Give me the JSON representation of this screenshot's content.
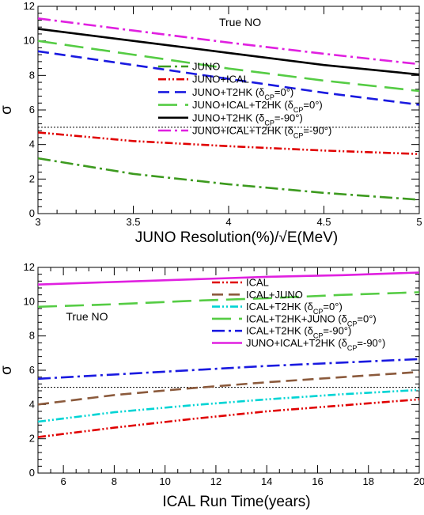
{
  "chart_data": [
    {
      "type": "line",
      "xlabel": "JUNO Resolution(%)/√E(MeV)",
      "ylabel": "σ",
      "xlim": [
        3,
        5
      ],
      "ylim": [
        0,
        12
      ],
      "xticks": [
        3,
        3.5,
        4,
        4.5,
        5
      ],
      "xtick_labels": [
        "3",
        "3.5",
        "4",
        "4.5",
        "5"
      ],
      "yticks": [
        0,
        2,
        4,
        6,
        8,
        10,
        12
      ],
      "ytick_labels": [
        "0",
        "2",
        "4",
        "6",
        "8",
        "10",
        "12"
      ],
      "annotations": [
        {
          "text": "True NO",
          "at": [
            3.95,
            10.85
          ]
        }
      ],
      "reference_line": {
        "y": 5,
        "style": "dotted"
      },
      "legend_placement": "center-right",
      "series": [
        {
          "name": "JUNO",
          "color": "#3c9a1e",
          "dash": "dashdot",
          "x": [
            3,
            3.5,
            4,
            4.5,
            5
          ],
          "y": [
            3.2,
            2.3,
            1.7,
            1.2,
            0.8
          ]
        },
        {
          "name": "JUNO+ICAL",
          "color": "#e00000",
          "dash": "dashdotdot",
          "x": [
            3,
            3.5,
            4,
            4.5,
            5
          ],
          "y": [
            4.7,
            4.2,
            3.9,
            3.65,
            3.45
          ]
        },
        {
          "name": "JUNO+T2HK (δ_CP=0°)",
          "color": "#1a1ae0",
          "dash": "dashed",
          "x": [
            3,
            3.5,
            4,
            4.5,
            5
          ],
          "y": [
            9.4,
            8.6,
            7.8,
            7.0,
            6.3
          ]
        },
        {
          "name": "JUNO+ICAL+T2HK (δ_CP=0°)",
          "color": "#55cc44",
          "dash": "longdash",
          "x": [
            3,
            3.5,
            4,
            4.5,
            5
          ],
          "y": [
            10.0,
            9.2,
            8.4,
            7.7,
            7.1
          ]
        },
        {
          "name": "JUNO+T2HK (δ_CP=-90°)",
          "color": "#000000",
          "dash": "solid",
          "x": [
            3,
            3.5,
            4,
            4.5,
            5
          ],
          "y": [
            10.7,
            10.0,
            9.3,
            8.6,
            8.05
          ]
        },
        {
          "name": "JUNO+ICAL+T2HK (δ_CP=-90°)",
          "color": "#e020e0",
          "dash": "dashdot",
          "x": [
            3,
            3.5,
            4,
            4.5,
            5
          ],
          "y": [
            11.3,
            10.6,
            9.9,
            9.25,
            8.65
          ]
        }
      ]
    },
    {
      "type": "line",
      "xlabel": "ICAL Run Time(years)",
      "ylabel": "σ",
      "xlim": [
        5,
        20
      ],
      "ylim": [
        0,
        12
      ],
      "xticks": [
        6,
        8,
        10,
        12,
        14,
        16,
        18,
        20
      ],
      "xtick_labels": [
        "6",
        "8",
        "10",
        "12",
        "14",
        "16",
        "18",
        "20"
      ],
      "yticks": [
        0,
        2,
        4,
        6,
        8,
        10,
        12
      ],
      "ytick_labels": [
        "0",
        "2",
        "4",
        "6",
        "8",
        "10",
        "12"
      ],
      "annotations": [
        {
          "text": "True NO",
          "at": [
            6.1,
            8.9
          ]
        }
      ],
      "reference_line": {
        "y": 5,
        "style": "dotted"
      },
      "legend_placement": "top-right",
      "series": [
        {
          "name": "ICAL",
          "color": "#e00000",
          "dash": "dashdotdot",
          "x": [
            5,
            8,
            11,
            14,
            17,
            20
          ],
          "y": [
            2.1,
            2.65,
            3.15,
            3.6,
            3.95,
            4.3
          ]
        },
        {
          "name": "ICAL+JUNO",
          "color": "#8b5a3c",
          "dash": "dashed",
          "x": [
            5,
            8,
            11,
            14,
            17,
            20
          ],
          "y": [
            4.0,
            4.55,
            4.95,
            5.3,
            5.6,
            5.9
          ]
        },
        {
          "name": "ICAL+T2HK (δ_CP=0°)",
          "color": "#00d4d4",
          "dash": "dashdotdot",
          "x": [
            5,
            8,
            11,
            14,
            17,
            20
          ],
          "y": [
            3.0,
            3.55,
            3.95,
            4.3,
            4.6,
            4.85
          ]
        },
        {
          "name": "ICAL+T2HK+JUNO (δ_CP=0°)",
          "color": "#55cc44",
          "dash": "longdash",
          "x": [
            5,
            8,
            11,
            14,
            17,
            20
          ],
          "y": [
            9.7,
            9.85,
            10.05,
            10.2,
            10.4,
            10.55
          ]
        },
        {
          "name": "ICAL+T2HK (δ_CP=-90°)",
          "color": "#1a1ae0",
          "dash": "dashdot",
          "x": [
            5,
            8,
            11,
            14,
            17,
            20
          ],
          "y": [
            5.5,
            5.75,
            6.0,
            6.25,
            6.45,
            6.65
          ]
        },
        {
          "name": "JUNO+ICAL+T2HK (δ_CP=-90°)",
          "color": "#e020e0",
          "dash": "solid",
          "x": [
            5,
            8,
            11,
            14,
            17,
            20
          ],
          "y": [
            11.0,
            11.15,
            11.3,
            11.45,
            11.55,
            11.7
          ]
        }
      ]
    }
  ]
}
